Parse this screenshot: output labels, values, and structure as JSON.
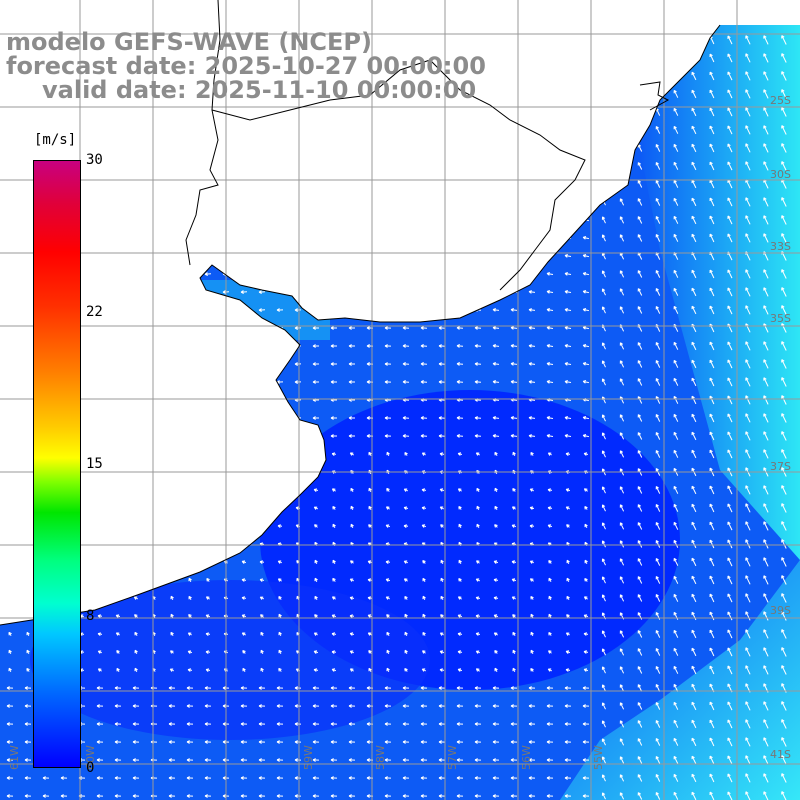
{
  "title": {
    "model": "modelo GEFS-WAVE (NCEP)",
    "forecast": "forecast date: 2025-10-27 00:00:00",
    "valid": "valid date: 2025-11-10 00:00:00"
  },
  "colorbar": {
    "unit": "[m/s]",
    "min": 0,
    "max": 30,
    "ticks": [
      "30",
      "22",
      "15",
      "8",
      "0"
    ]
  },
  "colors": {
    "ocean_deep": "#0022ff",
    "ocean_mid": "#0a5cf5",
    "ocean_light": "#16b6f2",
    "ocean_cyan": "#2ee2f5",
    "arrow": "#ffffff",
    "grid": "#999999",
    "coast": "#000000"
  },
  "lat_labels": [
    "25S",
    "30S",
    "33S",
    "35S",
    "37S",
    "39S",
    "41S"
  ],
  "lon_labels": [
    "61W",
    "60W",
    "59W",
    "58W",
    "57W",
    "56W",
    "55W"
  ]
}
